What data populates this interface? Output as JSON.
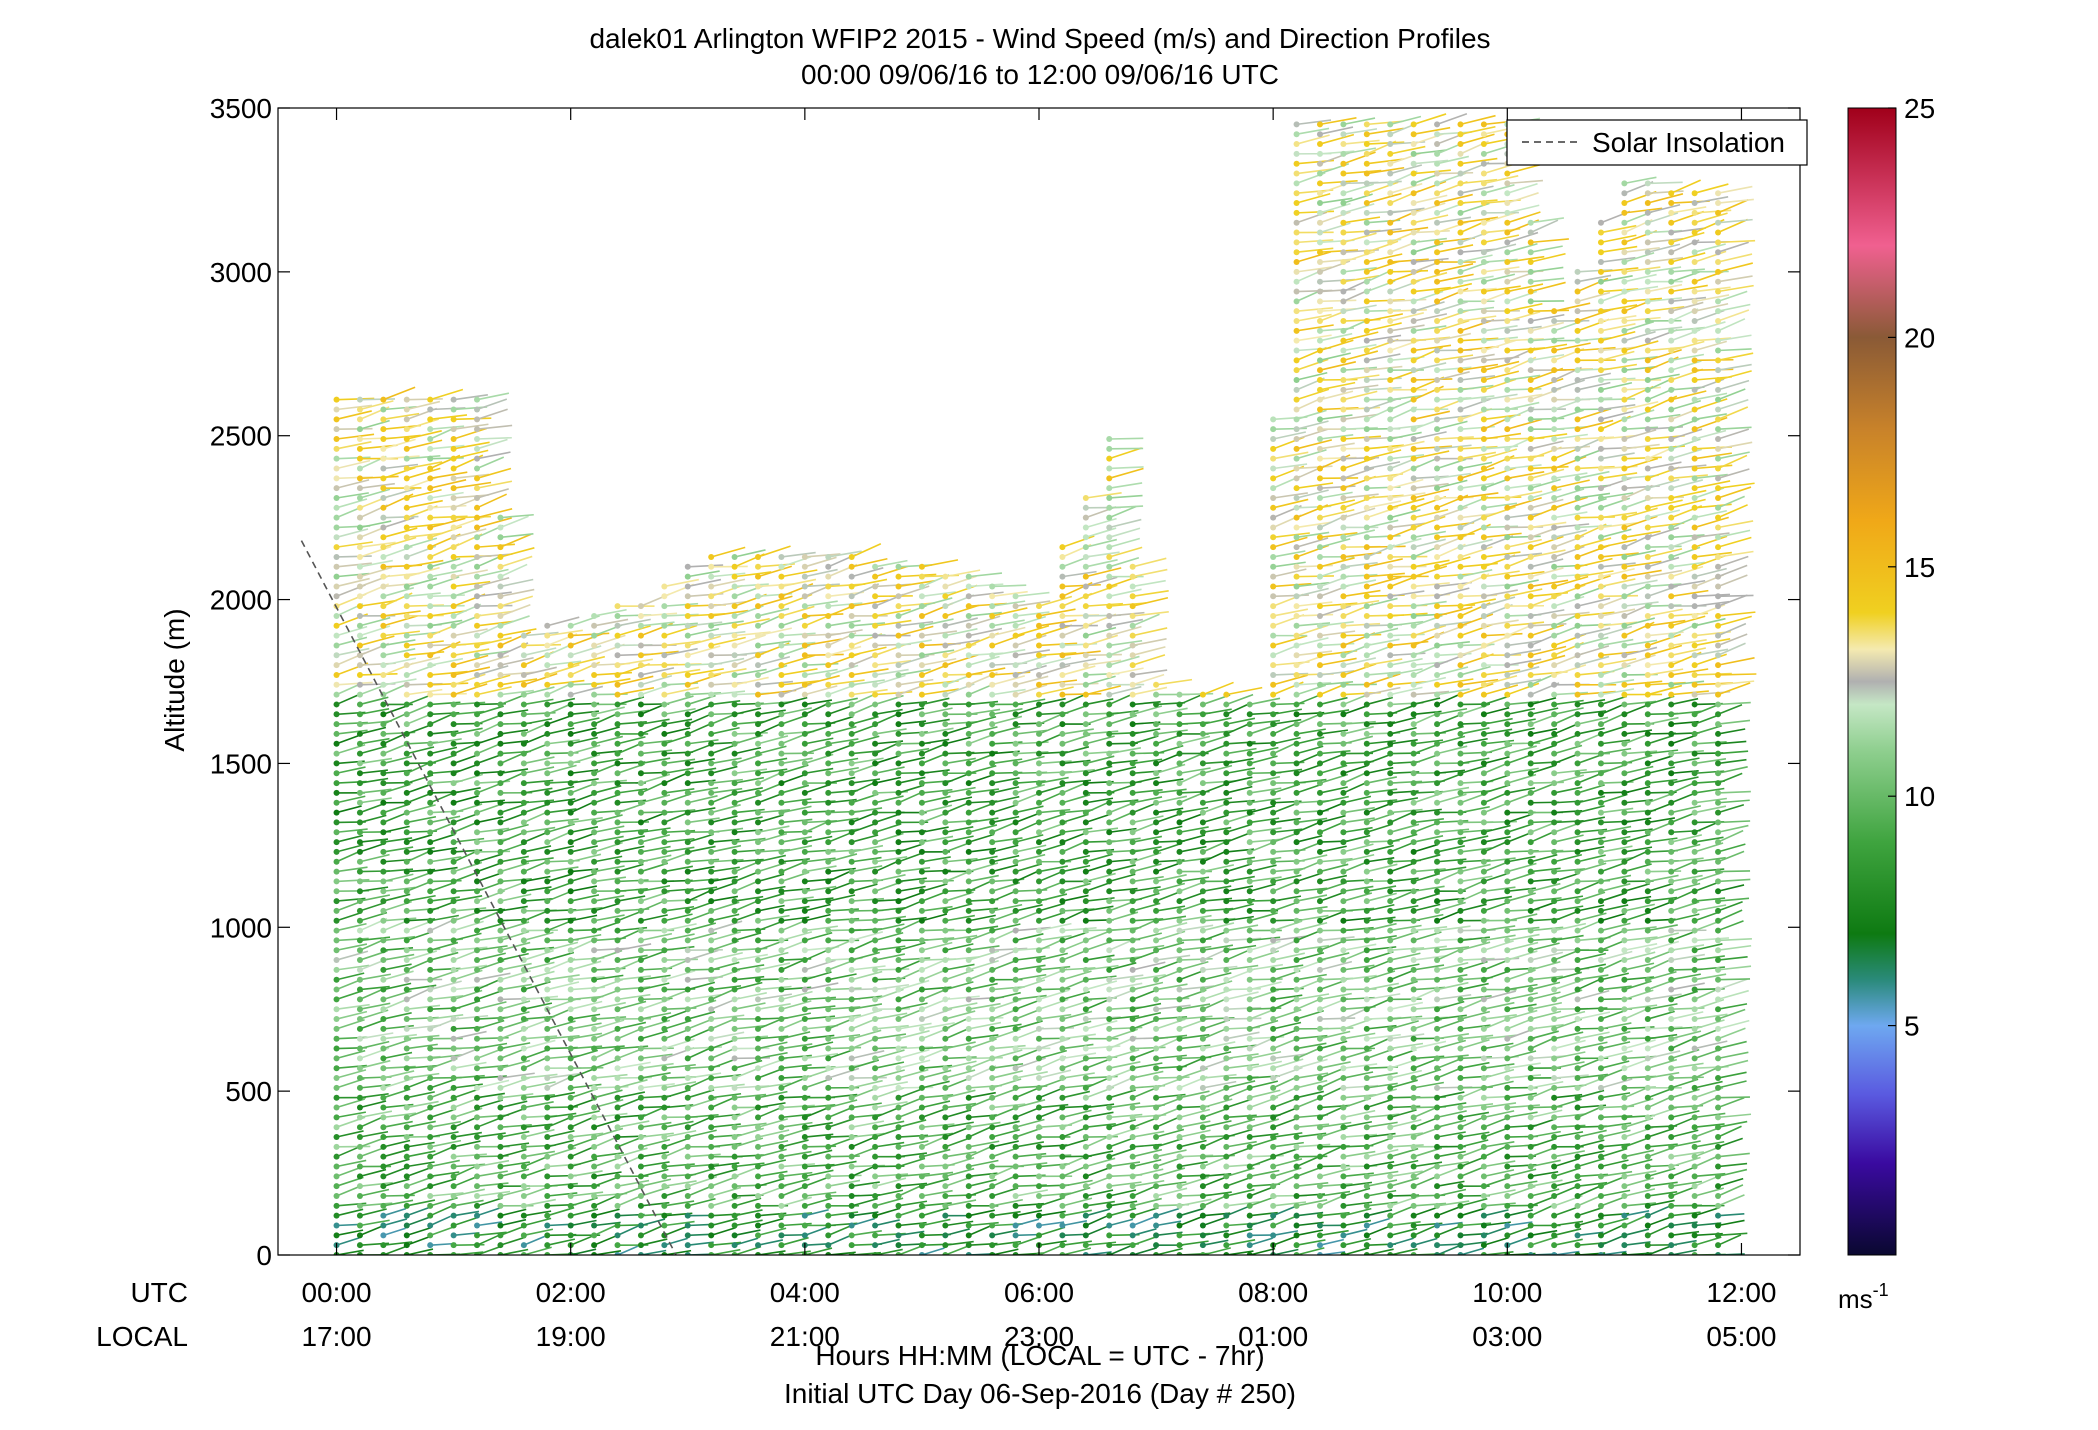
{
  "chart_data": {
    "type": "scatter",
    "title": "dalek01 Arlington WFIP2 2015 - Wind Speed (m/s) and Direction Profiles",
    "subtitle": "00:00 09/06/16 to 12:00 09/06/16  UTC",
    "ylabel": "Altitude (m)",
    "xlabel": "Hours HH:MM  (LOCAL = UTC - 7hr)",
    "xlabel2": "Initial UTC Day 06-Sep-2016 (Day # 250)",
    "row_label_utc": "UTC",
    "row_label_local": "LOCAL",
    "x_ticks_utc": [
      "00:00",
      "02:00",
      "04:00",
      "06:00",
      "08:00",
      "10:00",
      "12:00"
    ],
    "x_ticks_local": [
      "17:00",
      "19:00",
      "21:00",
      "23:00",
      "01:00",
      "03:00",
      "05:00"
    ],
    "x_tick_hours": [
      0,
      2,
      4,
      6,
      8,
      10,
      12
    ],
    "xlim_hours": [
      -0.5,
      12.5
    ],
    "ylim": [
      0,
      3500
    ],
    "y_ticks": [
      0,
      500,
      1000,
      1500,
      2000,
      2500,
      3000,
      3500
    ],
    "grid": false,
    "legend": {
      "entry": "Solar Insolation",
      "placement": "top-right",
      "style": "dashed"
    },
    "colorbar": {
      "min": 0,
      "max": 25,
      "ticks": [
        5,
        10,
        15,
        20,
        25
      ],
      "unit_label": "ms",
      "unit_exponent": "-1",
      "stops": [
        {
          "v": 0,
          "c": "#0a0830"
        },
        {
          "v": 2,
          "c": "#3a0aa0"
        },
        {
          "v": 3.5,
          "c": "#5a5ae0"
        },
        {
          "v": 5,
          "c": "#6ea8f0"
        },
        {
          "v": 6,
          "c": "#2a8a7a"
        },
        {
          "v": 7,
          "c": "#0e7a12"
        },
        {
          "v": 9,
          "c": "#3fa43f"
        },
        {
          "v": 11,
          "c": "#8fcf8f"
        },
        {
          "v": 12,
          "c": "#c5e7c5"
        },
        {
          "v": 12.5,
          "c": "#b0b0b0"
        },
        {
          "v": 13.2,
          "c": "#f4eab0"
        },
        {
          "v": 14,
          "c": "#f0d020"
        },
        {
          "v": 16,
          "c": "#f0a818"
        },
        {
          "v": 18,
          "c": "#c8822a"
        },
        {
          "v": 20,
          "c": "#8a5a36"
        },
        {
          "v": 22,
          "c": "#f06090"
        },
        {
          "v": 25,
          "c": "#a0001a"
        }
      ]
    },
    "solar_insolation_line": {
      "x_hours": [
        -0.3,
        2.9
      ],
      "altitude": [
        2180,
        0
      ]
    },
    "profiles": {
      "time_step_hours": 0.2,
      "start_hour": 0,
      "end_hour": 11.8,
      "altitude_step_m": 30,
      "speed_bands": [
        {
          "alt": [
            0,
            150
          ],
          "speed": 7.5
        },
        {
          "alt": [
            150,
            500
          ],
          "speed": 9.5
        },
        {
          "alt": [
            500,
            1000
          ],
          "speed": 10.5
        },
        {
          "alt": [
            1000,
            1700
          ],
          "speed": 9
        },
        {
          "alt": [
            1700,
            3500
          ],
          "speed": 13
        }
      ],
      "direction_deg": 250,
      "max_altitude_by_hour": [
        {
          "h": 0,
          "alt": 2620
        },
        {
          "h": 1.2,
          "alt": 2620
        },
        {
          "h": 1.6,
          "alt": 1900
        },
        {
          "h": 2.6,
          "alt": 2000
        },
        {
          "h": 3.2,
          "alt": 2150
        },
        {
          "h": 5.0,
          "alt": 2120
        },
        {
          "h": 6.0,
          "alt": 2000
        },
        {
          "h": 6.6,
          "alt": 2500
        },
        {
          "h": 7.0,
          "alt": 1750
        },
        {
          "h": 7.8,
          "alt": 1700
        },
        {
          "h": 8.2,
          "alt": 3450
        },
        {
          "h": 10.0,
          "alt": 3450
        },
        {
          "h": 10.4,
          "alt": 2900
        },
        {
          "h": 11.0,
          "alt": 3280
        },
        {
          "h": 11.8,
          "alt": 3250
        }
      ]
    }
  }
}
